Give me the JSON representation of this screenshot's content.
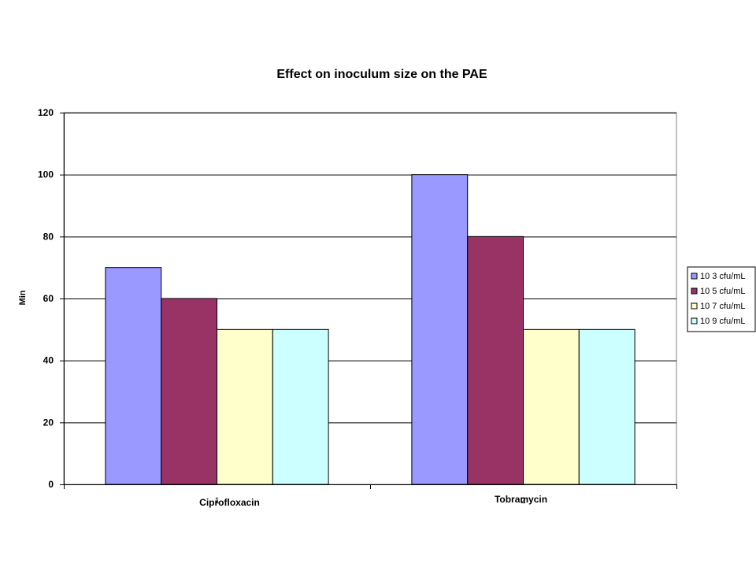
{
  "chart_data": {
    "type": "bar",
    "title": "Effect on inoculum size on the PAE",
    "xlabel": "",
    "ylabel": "Min",
    "categories": [
      "Ciprofloxacin",
      "Tobramycin"
    ],
    "category_markers": [
      "1",
      "2"
    ],
    "series": [
      {
        "name": "10 3 cfu/mL",
        "color": "#9999ff",
        "values": [
          70,
          100
        ]
      },
      {
        "name": "10 5 cfu/mL",
        "color": "#993366",
        "values": [
          60,
          80
        ]
      },
      {
        "name": "10 7 cfu/mL",
        "color": "#ffffcc",
        "values": [
          50,
          50
        ]
      },
      {
        "name": "10 9 cfu/mL",
        "color": "#ccffff",
        "values": [
          50,
          50
        ]
      }
    ],
    "ylim": [
      0,
      120
    ],
    "yticks": [
      0,
      20,
      40,
      60,
      80,
      100,
      120
    ],
    "grid": true,
    "legend_position": "right"
  }
}
